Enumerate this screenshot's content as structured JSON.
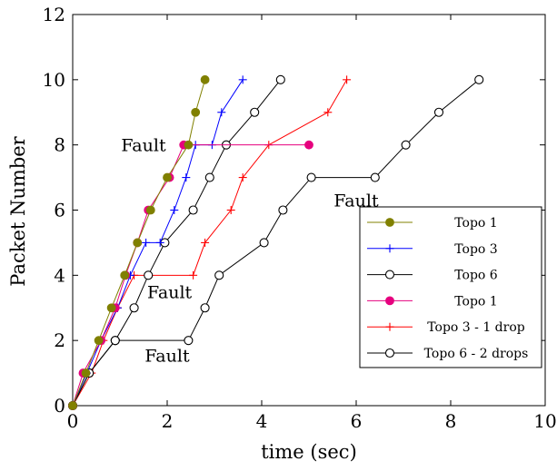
{
  "chart_data": {
    "type": "line",
    "xlabel": "time (sec)",
    "ylabel": "Packet Number",
    "xlim": [
      0,
      10
    ],
    "ylim": [
      0,
      12
    ],
    "x_ticks": [
      0,
      2,
      4,
      6,
      8,
      10
    ],
    "y_ticks": [
      0,
      2,
      4,
      6,
      8,
      10,
      12
    ],
    "grid": false,
    "legend_position": "lower-right",
    "series": [
      {
        "name": "Topo 1",
        "color": "#808000",
        "marker": "filled-circle",
        "x": [
          0,
          0.28,
          0.55,
          0.82,
          1.1,
          1.37,
          1.65,
          2.0,
          2.45,
          2.6,
          2.8
        ],
        "y": [
          0,
          1,
          2,
          3,
          4,
          5,
          6,
          7,
          8,
          9,
          10
        ]
      },
      {
        "name": "Topo 3",
        "color": "#0000ff",
        "marker": "plus",
        "x": [
          0,
          0.3,
          0.6,
          0.95,
          1.22,
          1.55,
          1.85,
          2.15,
          2.4,
          2.6,
          2.95,
          3.15,
          3.6
        ],
        "y": [
          0,
          1,
          2,
          3,
          4,
          5,
          5,
          6,
          7,
          8,
          8,
          9,
          10
        ]
      },
      {
        "name": "Topo 6",
        "color": "#000000",
        "marker": "open-circle",
        "x": [
          0,
          0.35,
          0.9,
          1.3,
          1.6,
          1.95,
          2.55,
          2.9,
          3.25,
          3.85,
          4.4
        ],
        "y": [
          0,
          1,
          2,
          3,
          4,
          5,
          6,
          7,
          8,
          9,
          10
        ]
      },
      {
        "name": "Topo 1",
        "color": "#e6007e",
        "marker": "filled-circle",
        "x": [
          0,
          0.22,
          0.6,
          0.9,
          1.12,
          1.37,
          1.6,
          2.05,
          2.35,
          5.0
        ],
        "y": [
          0,
          1,
          2,
          3,
          4,
          5,
          6,
          7,
          8,
          8
        ]
      },
      {
        "name": "Topo 3 - 1 drop",
        "color": "#ff0000",
        "marker": "plus",
        "x": [
          0,
          0.4,
          0.65,
          0.95,
          1.3,
          2.55,
          2.8,
          3.35,
          3.6,
          4.15,
          5.4,
          5.8
        ],
        "y": [
          0,
          1,
          2,
          3,
          4,
          4,
          5,
          6,
          7,
          8,
          9,
          10
        ]
      },
      {
        "name": "Topo 6 - 2 drops",
        "color": "#000000",
        "marker": "open-circle",
        "x": [
          0,
          0.35,
          0.9,
          2.45,
          2.8,
          3.1,
          4.05,
          4.45,
          5.05,
          6.4,
          7.05,
          7.75,
          8.6
        ],
        "y": [
          0,
          1,
          2,
          2,
          3,
          4,
          5,
          6,
          7,
          7,
          8,
          9,
          10
        ]
      }
    ],
    "annotations": [
      {
        "text": "Fault",
        "x": 1.5,
        "y": 8.0
      },
      {
        "text": "Fault",
        "x": 2.05,
        "y": 3.5
      },
      {
        "text": "Fault",
        "x": 6.0,
        "y": 6.3
      },
      {
        "text": "Fault",
        "x": 2.0,
        "y": 1.55
      }
    ]
  }
}
